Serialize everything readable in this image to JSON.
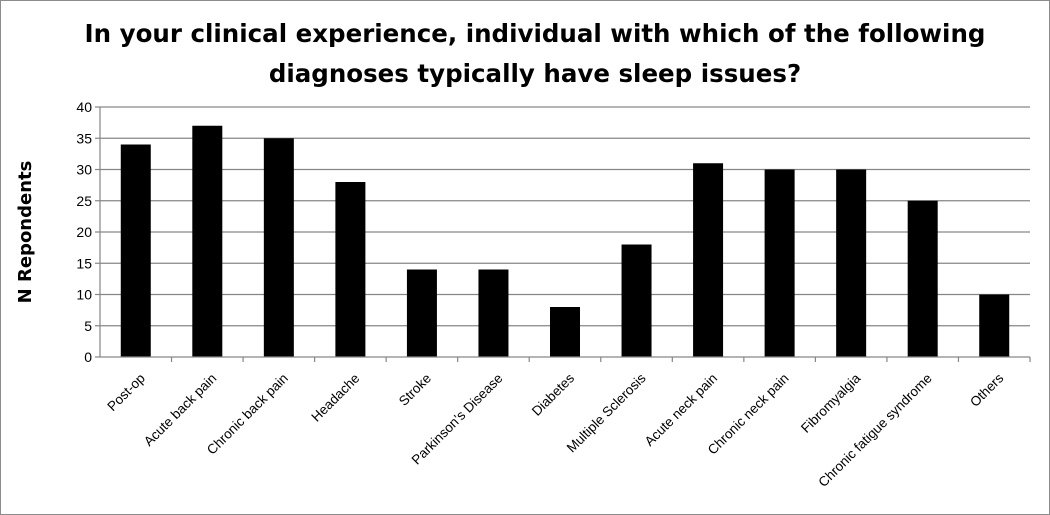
{
  "chart_data": {
    "type": "bar",
    "title_lines": [
      "In your clinical experience, individual with which of the following",
      "diagnoses typically have sleep issues?"
    ],
    "ylabel": "N Repondents",
    "xlabel": "",
    "ylim": [
      0,
      40
    ],
    "yticks": [
      0,
      5,
      10,
      15,
      20,
      25,
      30,
      35,
      40
    ],
    "grid": true,
    "categories": [
      "Post-op",
      "Acute back pain",
      "Chronic back pain",
      "Headache",
      "Stroke",
      "Parkinson’s Disease",
      "Diabetes",
      "Multiple Sclerosis",
      "Acute neck pain",
      "Chronic neck pain",
      "Fibromyalgia",
      "Chronic fatigue syndrome",
      "Others"
    ],
    "values": [
      34,
      37,
      35,
      28,
      14,
      14,
      8,
      18,
      31,
      30,
      30,
      25,
      10
    ],
    "bar_color": "#000000",
    "grid_color": "#868686"
  }
}
